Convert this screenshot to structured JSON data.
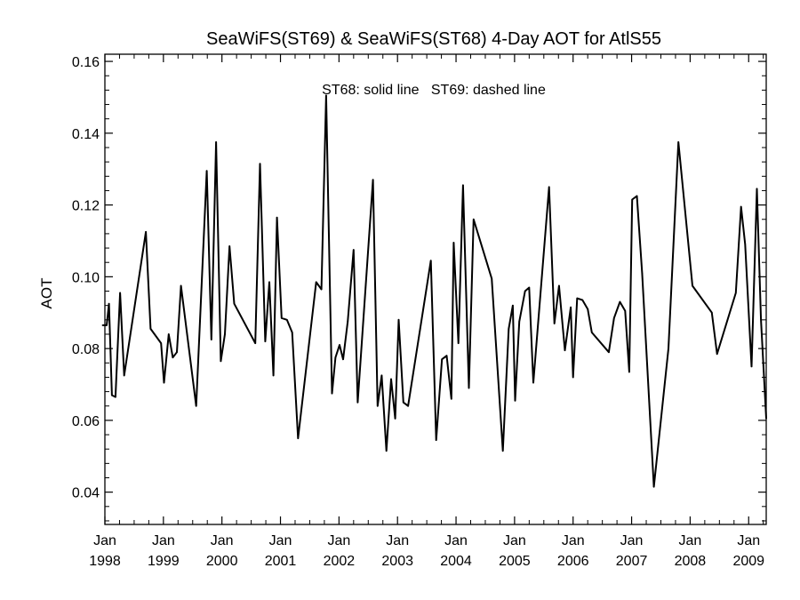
{
  "chart_data": {
    "type": "line",
    "title": "SeaWiFS(ST69) & SeaWiFS(ST68) 4-Day AOT for AtlS55",
    "ylabel": "AOT",
    "xlabel": "",
    "annotation": "ST68: solid line   ST69: dashed line",
    "xlim": [
      1998.0,
      2009.3
    ],
    "ylim": [
      0.031,
      0.162
    ],
    "yticks": [
      {
        "value": 0.04,
        "label": "0.04"
      },
      {
        "value": 0.06,
        "label": "0.06"
      },
      {
        "value": 0.08,
        "label": "0.08"
      },
      {
        "value": 0.1,
        "label": "0.10"
      },
      {
        "value": 0.12,
        "label": "0.12"
      },
      {
        "value": 0.14,
        "label": "0.14"
      },
      {
        "value": 0.16,
        "label": "0.16"
      }
    ],
    "xticks": [
      {
        "value": 1998,
        "month": "Jan",
        "year": "1998"
      },
      {
        "value": 1999,
        "month": "Jan",
        "year": "1999"
      },
      {
        "value": 2000,
        "month": "Jan",
        "year": "2000"
      },
      {
        "value": 2001,
        "month": "Jan",
        "year": "2001"
      },
      {
        "value": 2002,
        "month": "Jan",
        "year": "2002"
      },
      {
        "value": 2003,
        "month": "Jan",
        "year": "2003"
      },
      {
        "value": 2004,
        "month": "Jan",
        "year": "2004"
      },
      {
        "value": 2005,
        "month": "Jan",
        "year": "2005"
      },
      {
        "value": 2006,
        "month": "Jan",
        "year": "2006"
      },
      {
        "value": 2007,
        "month": "Jan",
        "year": "2007"
      },
      {
        "value": 2008,
        "month": "Jan",
        "year": "2008"
      },
      {
        "value": 2009,
        "month": "Jan",
        "year": "2009"
      }
    ],
    "grid": false,
    "series": [
      {
        "style": "solid",
        "points": [
          [
            1997.96,
            0.0865
          ],
          [
            1998.03,
            0.0865
          ],
          [
            1998.07,
            0.0925
          ],
          [
            1998.12,
            0.067
          ],
          [
            1998.18,
            0.0665
          ],
          [
            1998.26,
            0.0955
          ],
          [
            1998.33,
            0.0725
          ],
          [
            1998.7,
            0.1125
          ],
          [
            1998.78,
            0.0855
          ],
          [
            1998.96,
            0.0815
          ],
          [
            1999.01,
            0.0705
          ],
          [
            1999.09,
            0.084
          ],
          [
            1999.16,
            0.0775
          ],
          [
            1999.23,
            0.079
          ],
          [
            1999.3,
            0.0975
          ],
          [
            1999.56,
            0.064
          ],
          [
            1999.74,
            0.1295
          ],
          [
            1999.82,
            0.0825
          ],
          [
            1999.9,
            0.1375
          ],
          [
            1999.98,
            0.0765
          ],
          [
            2000.05,
            0.084
          ],
          [
            2000.13,
            0.1085
          ],
          [
            2000.21,
            0.0925
          ],
          [
            2000.57,
            0.0815
          ],
          [
            2000.65,
            0.1315
          ],
          [
            2000.74,
            0.082
          ],
          [
            2000.81,
            0.0985
          ],
          [
            2000.88,
            0.0725
          ],
          [
            2000.94,
            0.1165
          ],
          [
            2001.02,
            0.0885
          ],
          [
            2001.11,
            0.088
          ],
          [
            2001.2,
            0.0845
          ],
          [
            2001.3,
            0.055
          ],
          [
            2001.61,
            0.0985
          ],
          [
            2001.7,
            0.0965
          ],
          [
            2001.78,
            0.1505
          ],
          [
            2001.88,
            0.0675
          ],
          [
            2001.94,
            0.0775
          ],
          [
            2002.01,
            0.081
          ],
          [
            2002.07,
            0.077
          ],
          [
            2002.15,
            0.0875
          ],
          [
            2002.25,
            0.1075
          ],
          [
            2002.32,
            0.065
          ],
          [
            2002.58,
            0.127
          ],
          [
            2002.66,
            0.064
          ],
          [
            2002.73,
            0.0725
          ],
          [
            2002.81,
            0.0515
          ],
          [
            2002.89,
            0.0715
          ],
          [
            2002.96,
            0.0605
          ],
          [
            2003.02,
            0.088
          ],
          [
            2003.1,
            0.065
          ],
          [
            2003.18,
            0.064
          ],
          [
            2003.57,
            0.1045
          ],
          [
            2003.66,
            0.0545
          ],
          [
            2003.76,
            0.077
          ],
          [
            2003.84,
            0.078
          ],
          [
            2003.92,
            0.066
          ],
          [
            2003.96,
            0.1095
          ],
          [
            2004.04,
            0.0815
          ],
          [
            2004.12,
            0.1255
          ],
          [
            2004.22,
            0.069
          ],
          [
            2004.3,
            0.116
          ],
          [
            2004.61,
            0.0995
          ],
          [
            2004.8,
            0.0515
          ],
          [
            2004.9,
            0.0855
          ],
          [
            2004.97,
            0.092
          ],
          [
            2005.01,
            0.0655
          ],
          [
            2005.08,
            0.0875
          ],
          [
            2005.18,
            0.096
          ],
          [
            2005.25,
            0.097
          ],
          [
            2005.32,
            0.0705
          ],
          [
            2005.59,
            0.125
          ],
          [
            2005.68,
            0.087
          ],
          [
            2005.76,
            0.0975
          ],
          [
            2005.86,
            0.0795
          ],
          [
            2005.96,
            0.0915
          ],
          [
            2006.0,
            0.072
          ],
          [
            2006.07,
            0.094
          ],
          [
            2006.16,
            0.0935
          ],
          [
            2006.25,
            0.091
          ],
          [
            2006.32,
            0.0845
          ],
          [
            2006.61,
            0.079
          ],
          [
            2006.7,
            0.0885
          ],
          [
            2006.8,
            0.093
          ],
          [
            2006.89,
            0.0905
          ],
          [
            2006.96,
            0.0735
          ],
          [
            2007.01,
            0.1215
          ],
          [
            2007.09,
            0.1225
          ],
          [
            2007.18,
            0.101
          ],
          [
            2007.38,
            0.0415
          ],
          [
            2007.63,
            0.08
          ],
          [
            2007.8,
            0.1375
          ],
          [
            2008.04,
            0.0975
          ],
          [
            2008.37,
            0.09
          ],
          [
            2008.46,
            0.0785
          ],
          [
            2008.78,
            0.0955
          ],
          [
            2008.87,
            0.1195
          ],
          [
            2008.94,
            0.109
          ],
          [
            2009.05,
            0.075
          ],
          [
            2009.14,
            0.1245
          ],
          [
            2009.21,
            0.088
          ],
          [
            2009.3,
            0.0605
          ]
        ]
      }
    ]
  }
}
